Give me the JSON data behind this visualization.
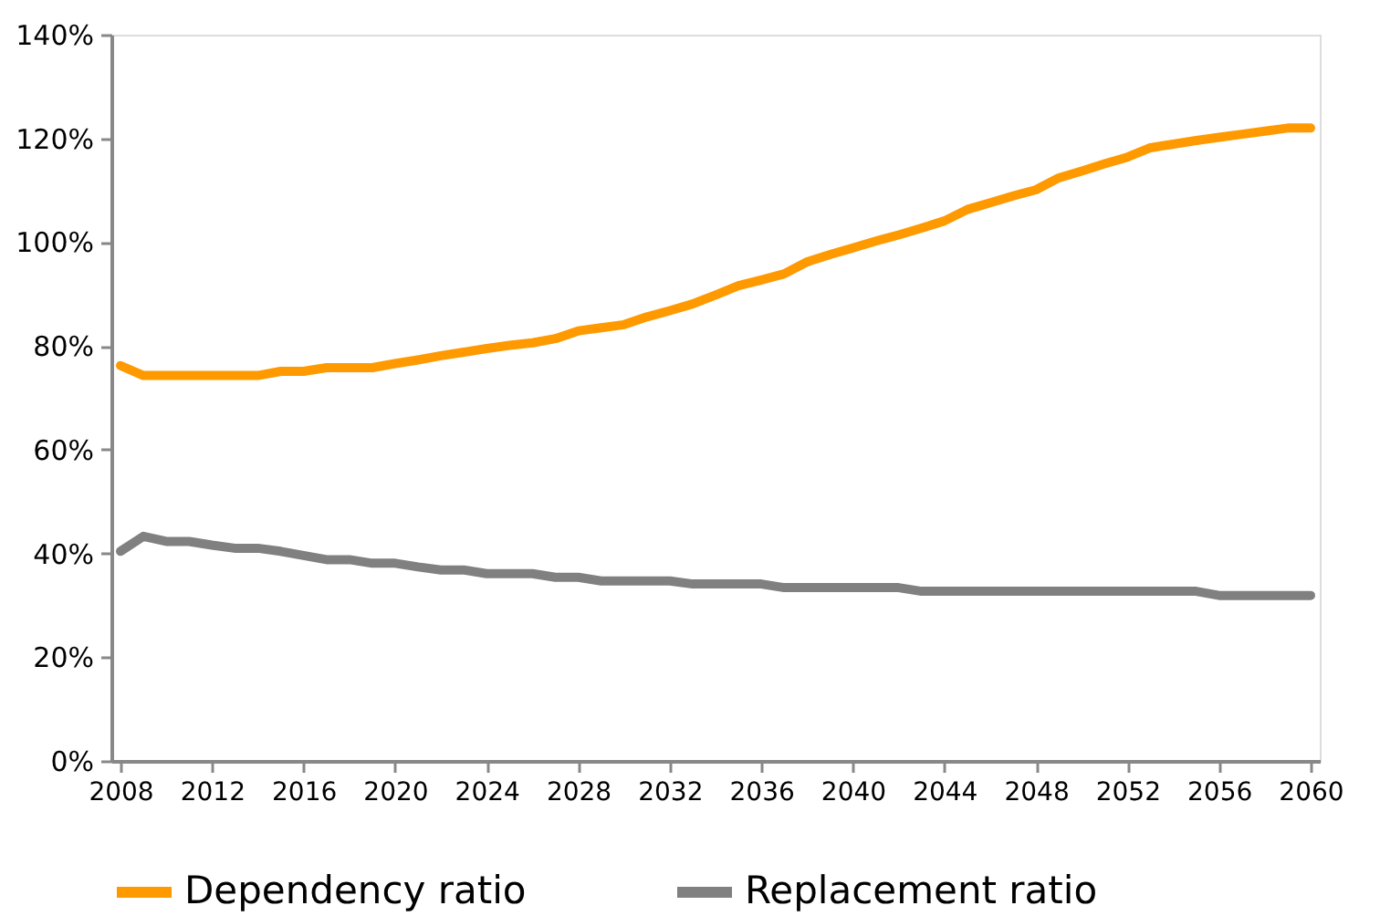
{
  "chart_data": {
    "type": "line",
    "x": [
      2008,
      2009,
      2010,
      2011,
      2012,
      2013,
      2014,
      2015,
      2016,
      2017,
      2018,
      2019,
      2020,
      2021,
      2022,
      2023,
      2024,
      2025,
      2026,
      2027,
      2028,
      2029,
      2030,
      2031,
      2032,
      2033,
      2034,
      2035,
      2036,
      2037,
      2038,
      2039,
      2040,
      2041,
      2042,
      2043,
      2044,
      2045,
      2046,
      2047,
      2048,
      2049,
      2050,
      2051,
      2052,
      2053,
      2054,
      2055,
      2056,
      2057,
      2058,
      2059,
      2060
    ],
    "series": [
      {
        "name": "Dependency ratio",
        "color": "#ff9900",
        "values": [
          76.2,
          74.3,
          74.3,
          74.3,
          74.3,
          74.3,
          74.3,
          75.1,
          75.1,
          75.8,
          75.8,
          75.8,
          76.6,
          77.3,
          78.1,
          78.8,
          79.5,
          80.1,
          80.6,
          81.4,
          82.9,
          83.5,
          84.1,
          85.6,
          86.8,
          88.1,
          89.8,
          91.6,
          92.7,
          93.9,
          96.2,
          97.6,
          98.9,
          100.2,
          101.4,
          102.7,
          104.1,
          106.3,
          107.6,
          108.9,
          110.1,
          112.4,
          113.7,
          115.1,
          116.4,
          118.2,
          118.9,
          119.6,
          120.2,
          120.8,
          121.4,
          122,
          122
        ]
      },
      {
        "name": "Replacement ratio",
        "color": "#808080",
        "values": [
          40.4,
          43.3,
          42.3,
          42.3,
          41.6,
          41,
          41,
          40.4,
          39.6,
          38.8,
          38.8,
          38.1,
          38.1,
          37.4,
          36.8,
          36.8,
          36.1,
          36.1,
          36.1,
          35.4,
          35.4,
          34.7,
          34.7,
          34.7,
          34.7,
          34.1,
          34.1,
          34.1,
          34.1,
          33.4,
          33.4,
          33.4,
          33.4,
          33.4,
          33.4,
          32.7,
          32.7,
          32.7,
          32.7,
          32.7,
          32.7,
          32.7,
          32.7,
          32.7,
          32.7,
          32.7,
          32.7,
          32.7,
          31.9,
          31.9,
          31.9,
          31.9,
          31.9
        ]
      }
    ],
    "xlim": [
      2007.6,
      2060.4
    ],
    "xticks": [
      2008,
      2012,
      2016,
      2020,
      2024,
      2028,
      2032,
      2036,
      2040,
      2044,
      2048,
      2052,
      2056,
      2060
    ],
    "ylim": [
      0,
      140
    ],
    "yticks": [
      {
        "value": 0,
        "label": "0%"
      },
      {
        "value": 20,
        "label": "20%"
      },
      {
        "value": 40,
        "label": "40%"
      },
      {
        "value": 60,
        "label": "60%"
      },
      {
        "value": 80,
        "label": "80%"
      },
      {
        "value": 100,
        "label": "100%"
      },
      {
        "value": 120,
        "label": "120%"
      },
      {
        "value": 140,
        "label": "140%"
      }
    ],
    "grid": false,
    "legend": "bottom",
    "marker": "none",
    "line_style": "solid"
  }
}
